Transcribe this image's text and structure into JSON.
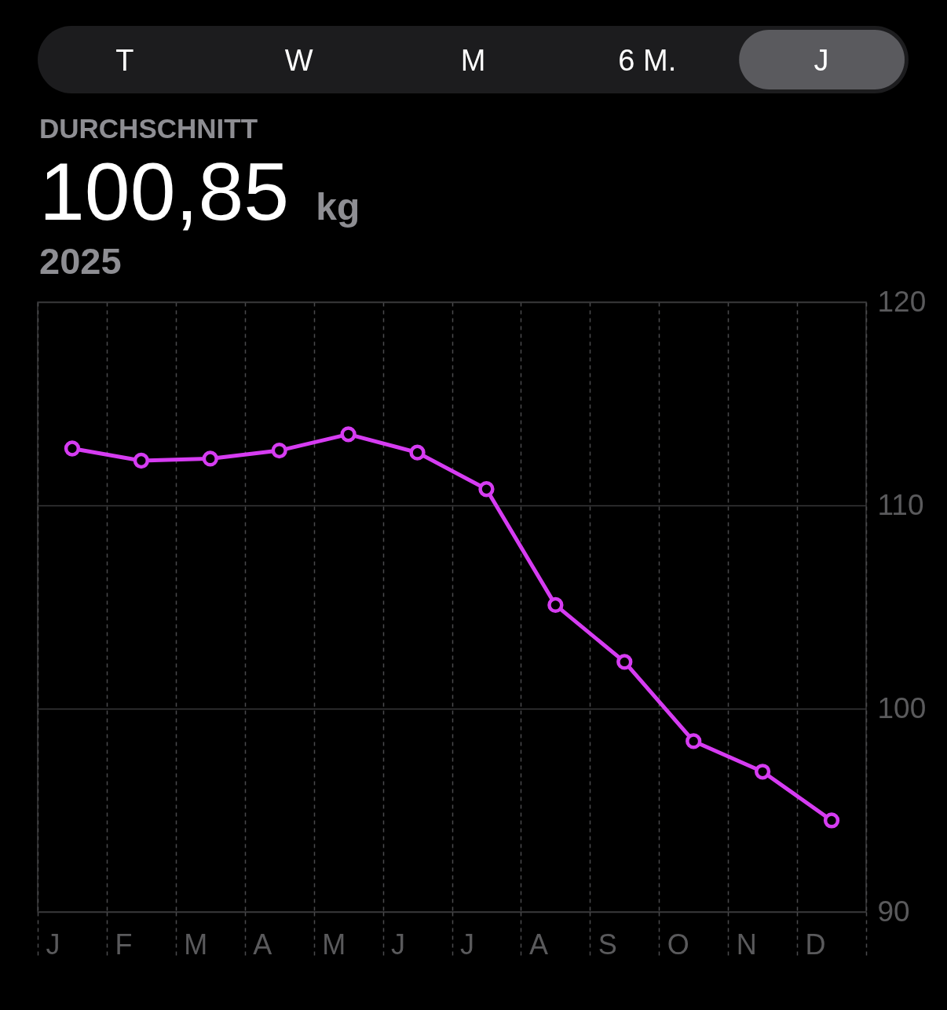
{
  "chart_data": {
    "type": "line",
    "title": "DURCHSCHNITT",
    "subtitle": "2025",
    "annotations": [
      "100,85",
      "kg",
      "T",
      "W",
      "M",
      "6 M.",
      "J"
    ],
    "categories": [
      "J",
      "F",
      "M",
      "A",
      "M",
      "J",
      "J",
      "A",
      "S",
      "O",
      "N",
      "D"
    ],
    "ylim": [
      90,
      120
    ],
    "yticks": [
      90,
      100,
      110,
      120
    ],
    "grid": true,
    "marker": "circle",
    "line_style": "solid",
    "series": [
      {
        "color": "#d63cf2",
        "values": [
          112.8,
          112.2,
          112.3,
          112.7,
          113.5,
          112.6,
          110.8,
          105.1,
          102.3,
          98.4,
          96.9,
          94.5
        ]
      }
    ]
  }
}
